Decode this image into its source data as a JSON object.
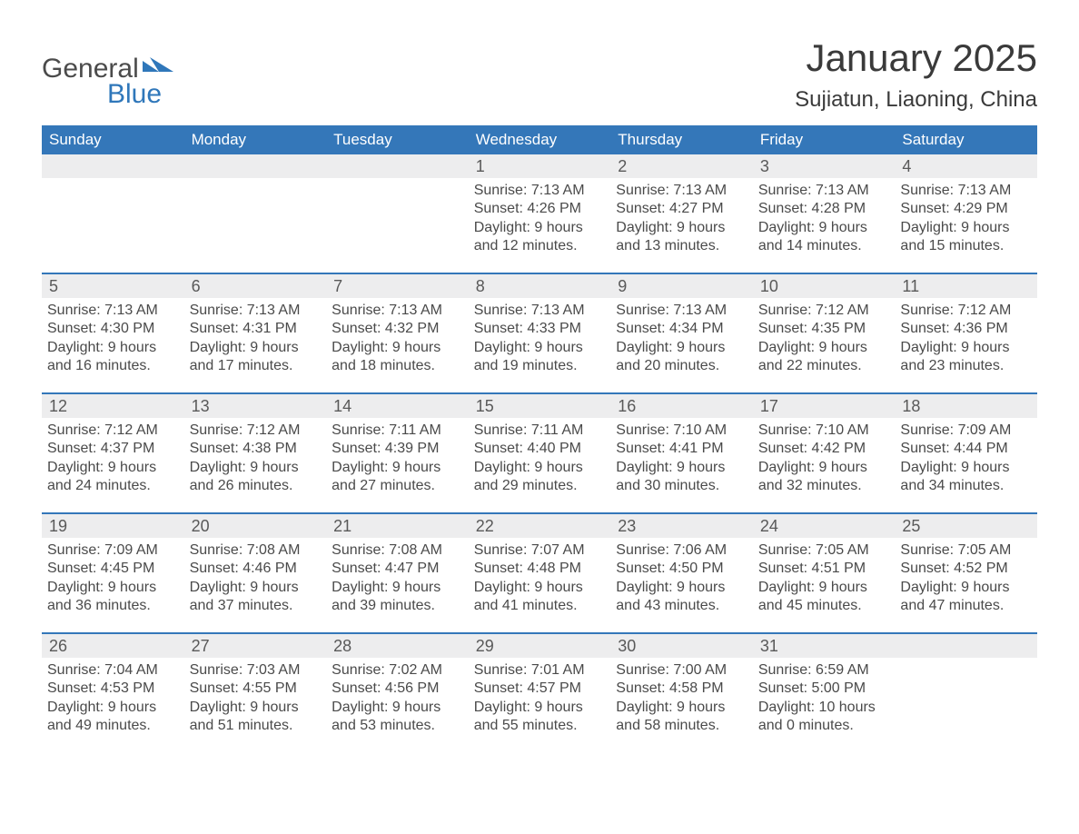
{
  "brand": {
    "word1": "General",
    "word2": "Blue",
    "accent": "#2f77ba",
    "text": "#4b4b4b"
  },
  "title": "January 2025",
  "location": "Sujiatun, Liaoning, China",
  "colors": {
    "header_bg": "#3477b9",
    "header_fg": "#ffffff",
    "row_stripe": "#ededee",
    "rule": "#3477b9",
    "body": "#3a3a3a"
  },
  "dow": [
    "Sunday",
    "Monday",
    "Tuesday",
    "Wednesday",
    "Thursday",
    "Friday",
    "Saturday"
  ],
  "weeks": [
    [
      null,
      null,
      null,
      {
        "n": "1",
        "sr": "Sunrise: 7:13 AM",
        "ss": "Sunset: 4:26 PM",
        "d1": "Daylight: 9 hours",
        "d2": "and 12 minutes."
      },
      {
        "n": "2",
        "sr": "Sunrise: 7:13 AM",
        "ss": "Sunset: 4:27 PM",
        "d1": "Daylight: 9 hours",
        "d2": "and 13 minutes."
      },
      {
        "n": "3",
        "sr": "Sunrise: 7:13 AM",
        "ss": "Sunset: 4:28 PM",
        "d1": "Daylight: 9 hours",
        "d2": "and 14 minutes."
      },
      {
        "n": "4",
        "sr": "Sunrise: 7:13 AM",
        "ss": "Sunset: 4:29 PM",
        "d1": "Daylight: 9 hours",
        "d2": "and 15 minutes."
      }
    ],
    [
      {
        "n": "5",
        "sr": "Sunrise: 7:13 AM",
        "ss": "Sunset: 4:30 PM",
        "d1": "Daylight: 9 hours",
        "d2": "and 16 minutes."
      },
      {
        "n": "6",
        "sr": "Sunrise: 7:13 AM",
        "ss": "Sunset: 4:31 PM",
        "d1": "Daylight: 9 hours",
        "d2": "and 17 minutes."
      },
      {
        "n": "7",
        "sr": "Sunrise: 7:13 AM",
        "ss": "Sunset: 4:32 PM",
        "d1": "Daylight: 9 hours",
        "d2": "and 18 minutes."
      },
      {
        "n": "8",
        "sr": "Sunrise: 7:13 AM",
        "ss": "Sunset: 4:33 PM",
        "d1": "Daylight: 9 hours",
        "d2": "and 19 minutes."
      },
      {
        "n": "9",
        "sr": "Sunrise: 7:13 AM",
        "ss": "Sunset: 4:34 PM",
        "d1": "Daylight: 9 hours",
        "d2": "and 20 minutes."
      },
      {
        "n": "10",
        "sr": "Sunrise: 7:12 AM",
        "ss": "Sunset: 4:35 PM",
        "d1": "Daylight: 9 hours",
        "d2": "and 22 minutes."
      },
      {
        "n": "11",
        "sr": "Sunrise: 7:12 AM",
        "ss": "Sunset: 4:36 PM",
        "d1": "Daylight: 9 hours",
        "d2": "and 23 minutes."
      }
    ],
    [
      {
        "n": "12",
        "sr": "Sunrise: 7:12 AM",
        "ss": "Sunset: 4:37 PM",
        "d1": "Daylight: 9 hours",
        "d2": "and 24 minutes."
      },
      {
        "n": "13",
        "sr": "Sunrise: 7:12 AM",
        "ss": "Sunset: 4:38 PM",
        "d1": "Daylight: 9 hours",
        "d2": "and 26 minutes."
      },
      {
        "n": "14",
        "sr": "Sunrise: 7:11 AM",
        "ss": "Sunset: 4:39 PM",
        "d1": "Daylight: 9 hours",
        "d2": "and 27 minutes."
      },
      {
        "n": "15",
        "sr": "Sunrise: 7:11 AM",
        "ss": "Sunset: 4:40 PM",
        "d1": "Daylight: 9 hours",
        "d2": "and 29 minutes."
      },
      {
        "n": "16",
        "sr": "Sunrise: 7:10 AM",
        "ss": "Sunset: 4:41 PM",
        "d1": "Daylight: 9 hours",
        "d2": "and 30 minutes."
      },
      {
        "n": "17",
        "sr": "Sunrise: 7:10 AM",
        "ss": "Sunset: 4:42 PM",
        "d1": "Daylight: 9 hours",
        "d2": "and 32 minutes."
      },
      {
        "n": "18",
        "sr": "Sunrise: 7:09 AM",
        "ss": "Sunset: 4:44 PM",
        "d1": "Daylight: 9 hours",
        "d2": "and 34 minutes."
      }
    ],
    [
      {
        "n": "19",
        "sr": "Sunrise: 7:09 AM",
        "ss": "Sunset: 4:45 PM",
        "d1": "Daylight: 9 hours",
        "d2": "and 36 minutes."
      },
      {
        "n": "20",
        "sr": "Sunrise: 7:08 AM",
        "ss": "Sunset: 4:46 PM",
        "d1": "Daylight: 9 hours",
        "d2": "and 37 minutes."
      },
      {
        "n": "21",
        "sr": "Sunrise: 7:08 AM",
        "ss": "Sunset: 4:47 PM",
        "d1": "Daylight: 9 hours",
        "d2": "and 39 minutes."
      },
      {
        "n": "22",
        "sr": "Sunrise: 7:07 AM",
        "ss": "Sunset: 4:48 PM",
        "d1": "Daylight: 9 hours",
        "d2": "and 41 minutes."
      },
      {
        "n": "23",
        "sr": "Sunrise: 7:06 AM",
        "ss": "Sunset: 4:50 PM",
        "d1": "Daylight: 9 hours",
        "d2": "and 43 minutes."
      },
      {
        "n": "24",
        "sr": "Sunrise: 7:05 AM",
        "ss": "Sunset: 4:51 PM",
        "d1": "Daylight: 9 hours",
        "d2": "and 45 minutes."
      },
      {
        "n": "25",
        "sr": "Sunrise: 7:05 AM",
        "ss": "Sunset: 4:52 PM",
        "d1": "Daylight: 9 hours",
        "d2": "and 47 minutes."
      }
    ],
    [
      {
        "n": "26",
        "sr": "Sunrise: 7:04 AM",
        "ss": "Sunset: 4:53 PM",
        "d1": "Daylight: 9 hours",
        "d2": "and 49 minutes."
      },
      {
        "n": "27",
        "sr": "Sunrise: 7:03 AM",
        "ss": "Sunset: 4:55 PM",
        "d1": "Daylight: 9 hours",
        "d2": "and 51 minutes."
      },
      {
        "n": "28",
        "sr": "Sunrise: 7:02 AM",
        "ss": "Sunset: 4:56 PM",
        "d1": "Daylight: 9 hours",
        "d2": "and 53 minutes."
      },
      {
        "n": "29",
        "sr": "Sunrise: 7:01 AM",
        "ss": "Sunset: 4:57 PM",
        "d1": "Daylight: 9 hours",
        "d2": "and 55 minutes."
      },
      {
        "n": "30",
        "sr": "Sunrise: 7:00 AM",
        "ss": "Sunset: 4:58 PM",
        "d1": "Daylight: 9 hours",
        "d2": "and 58 minutes."
      },
      {
        "n": "31",
        "sr": "Sunrise: 6:59 AM",
        "ss": "Sunset: 5:00 PM",
        "d1": "Daylight: 10 hours",
        "d2": "and 0 minutes."
      },
      null
    ]
  ]
}
